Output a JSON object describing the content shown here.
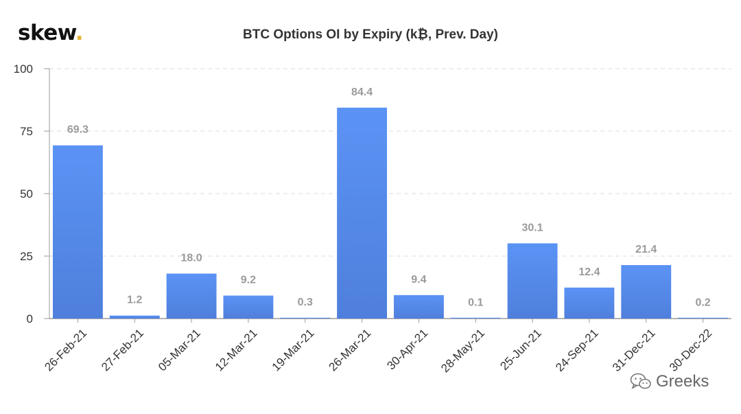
{
  "brand": {
    "name": "skew",
    "dot": ".",
    "dot_color": "#e3b33a"
  },
  "watermark": {
    "text": "Greeks",
    "icon": "wechat-icon"
  },
  "colors": {
    "bar_top": "#5b93f5",
    "bar_bottom": "#4f7fdc",
    "label": "#9a9a9a",
    "grid": "#dcdcdc",
    "axis": "#999999",
    "text": "#333333"
  },
  "chart_data": {
    "type": "bar",
    "title": "BTC Options OI by Expiry (k₿, Prev. Day)",
    "xlabel": "",
    "ylabel": "",
    "ylim": [
      0,
      100
    ],
    "yticks": [
      0,
      25,
      50,
      75,
      100
    ],
    "grid": true,
    "categories": [
      "26-Feb-21",
      "27-Feb-21",
      "05-Mar-21",
      "12-Mar-21",
      "19-Mar-21",
      "26-Mar-21",
      "30-Apr-21",
      "28-May-21",
      "25-Jun-21",
      "24-Sep-21",
      "31-Dec-21",
      "30-Dec-22"
    ],
    "values": [
      69.3,
      1.2,
      18.0,
      9.2,
      0.3,
      84.4,
      9.4,
      0.1,
      30.1,
      12.4,
      21.4,
      0.2
    ],
    "data_labels": [
      "69.3",
      "1.2",
      "18.0",
      "9.2",
      "0.3",
      "84.4",
      "9.4",
      "0.1",
      "30.1",
      "12.4",
      "21.4",
      "0.2"
    ]
  }
}
